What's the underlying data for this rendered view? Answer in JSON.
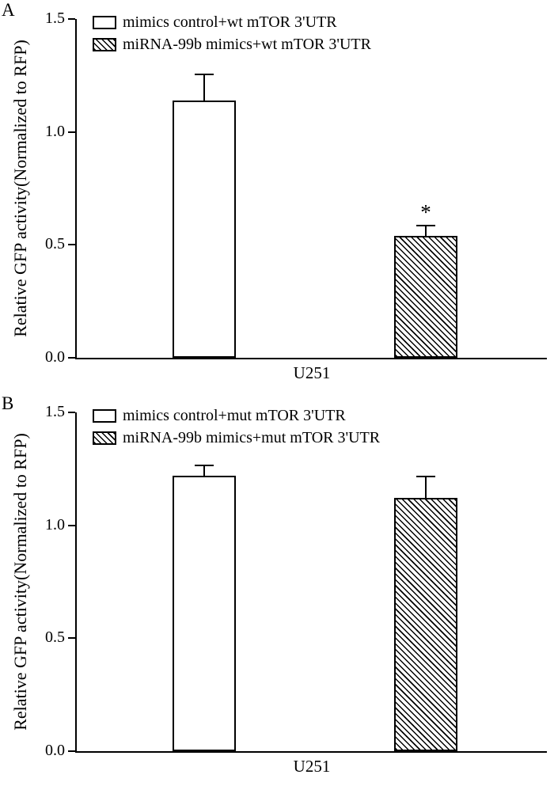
{
  "figure": {
    "background": "#ffffff",
    "ink": "#000000",
    "description": "Two-panel bar figure of relative GFP reporter activity"
  },
  "chart_data": [
    {
      "type": "bar",
      "panel_label": "A",
      "title": "",
      "xlabel": "U251",
      "ylabel": "Relative GFP activity(Normalized to RFP)",
      "ylim": [
        0,
        1.5
      ],
      "yticks": [
        0,
        0.5,
        1.0,
        1.5
      ],
      "ytick_labels": [
        "0.0",
        "0.5",
        "1.0",
        "1.5"
      ],
      "categories": [
        "U251"
      ],
      "grid": false,
      "legend_position": "upper-left-inside",
      "series": [
        {
          "name": "mimics control+wt mTOR 3'UTR",
          "fill": "white",
          "values": [
            1.14
          ],
          "errors": [
            0.12
          ],
          "annotations": [
            ""
          ]
        },
        {
          "name": "miRNA-99b mimics+wt mTOR 3'UTR",
          "fill": "diagonal-hatch",
          "values": [
            0.54
          ],
          "errors": [
            0.05
          ],
          "annotations": [
            "*"
          ]
        }
      ]
    },
    {
      "type": "bar",
      "panel_label": "B",
      "title": "",
      "xlabel": "U251",
      "ylabel": "Relative GFP activity(Normalized to RFP)",
      "ylim": [
        0,
        1.5
      ],
      "yticks": [
        0,
        0.5,
        1.0,
        1.5
      ],
      "ytick_labels": [
        "0.0",
        "0.5",
        "1.0",
        "1.5"
      ],
      "categories": [
        "U251"
      ],
      "grid": false,
      "legend_position": "upper-left-inside",
      "series": [
        {
          "name": "mimics control+mut mTOR 3'UTR",
          "fill": "white",
          "values": [
            1.22
          ],
          "errors": [
            0.05
          ],
          "annotations": [
            ""
          ]
        },
        {
          "name": "miRNA-99b mimics+mut mTOR 3'UTR",
          "fill": "diagonal-hatch",
          "values": [
            1.12
          ],
          "errors": [
            0.1
          ],
          "annotations": [
            ""
          ]
        }
      ]
    }
  ]
}
